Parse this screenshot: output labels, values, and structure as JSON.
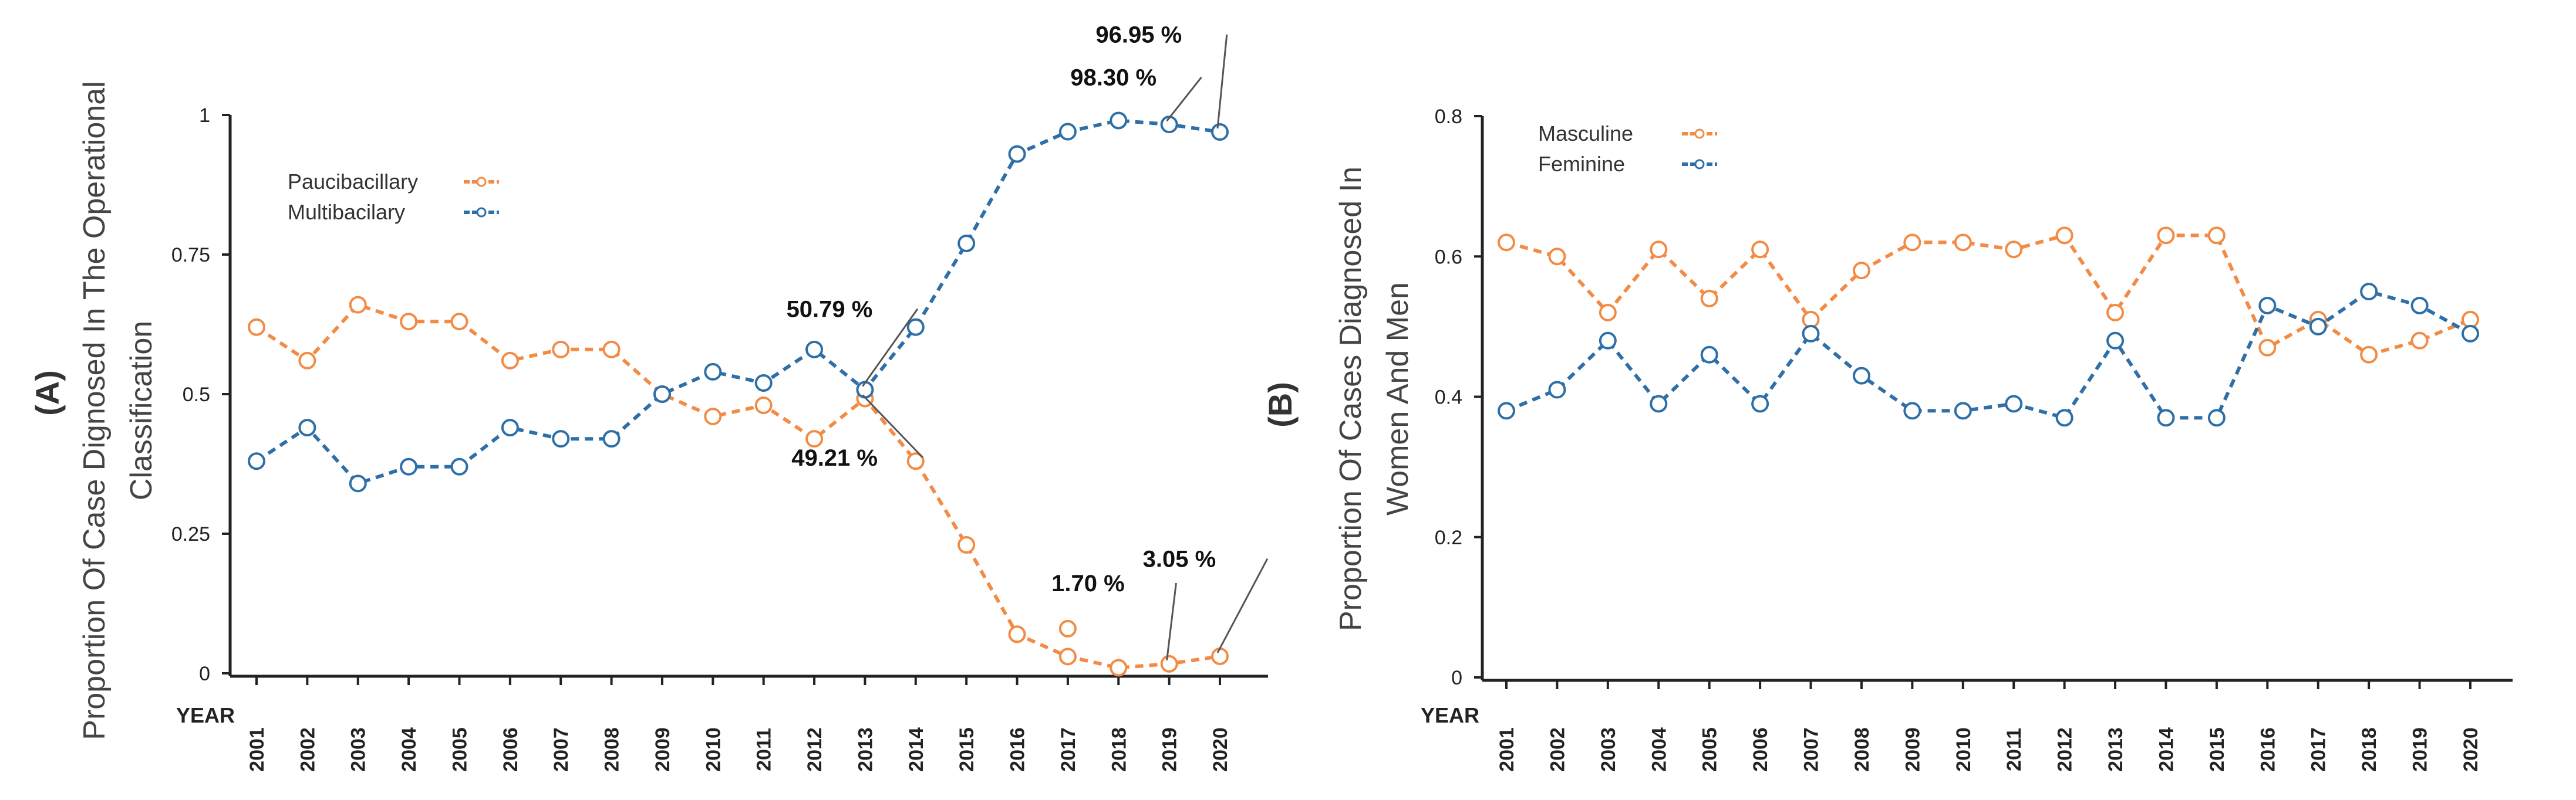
{
  "colors": {
    "orange": "#F28C45",
    "blue": "#2E6FA8",
    "axis": "#222222"
  },
  "chart_data": [
    {
      "panel": "(A)",
      "type": "line",
      "ylabel_line1": "Proportion Of Case Dignosed In The Operational",
      "ylabel_line2": "Classification",
      "xaxis_label": "YEAR",
      "ylim": [
        0,
        1
      ],
      "yticks": [
        {
          "value": 0,
          "label": "0"
        },
        {
          "value": 0.25,
          "label": "0.25"
        },
        {
          "value": 0.5,
          "label": "0.5"
        },
        {
          "value": 0.75,
          "label": "0.75"
        },
        {
          "value": 1,
          "label": "1"
        }
      ],
      "categories": [
        "2001",
        "2002",
        "2003",
        "2004",
        "2005",
        "2006",
        "2007",
        "2008",
        "2009",
        "2010",
        "2011",
        "2012",
        "2013",
        "2014",
        "2015",
        "2016",
        "2017",
        "2018",
        "2019",
        "2020"
      ],
      "legend_position": "top-left",
      "series": [
        {
          "name": "Paucibacillary",
          "color": "#F28C45",
          "values": [
            0.62,
            0.56,
            0.66,
            0.63,
            0.63,
            0.56,
            0.58,
            0.58,
            0.5,
            0.46,
            0.48,
            0.42,
            0.4921,
            0.38,
            0.23,
            0.07,
            0.03,
            0.01,
            0.017,
            0.0305
          ],
          "hollow_outlier": {
            "index": 16,
            "value": 0.08
          }
        },
        {
          "name": "Multibacilary",
          "color": "#2E6FA8",
          "values": [
            0.38,
            0.44,
            0.34,
            0.37,
            0.37,
            0.44,
            0.42,
            0.42,
            0.5,
            0.54,
            0.52,
            0.58,
            0.5079,
            0.62,
            0.77,
            0.93,
            0.97,
            0.99,
            0.983,
            0.9695
          ]
        }
      ],
      "annotations": [
        {
          "text": "96.95 %",
          "series": 1,
          "index": 19,
          "value": 0.9695,
          "dx": -1.6,
          "dy": 0.16
        },
        {
          "text": "98.30 %",
          "series": 1,
          "index": 18,
          "value": 0.983,
          "dx": -1.1,
          "dy": 0.07
        },
        {
          "text": "50.79 %",
          "series": 1,
          "index": 12,
          "value": 0.5079,
          "dx": -0.7,
          "dy": 0.13
        },
        {
          "text": "49.21 %",
          "series": 0,
          "index": 12,
          "value": 0.4921,
          "dx": -0.6,
          "dy": -0.12
        },
        {
          "text": "1.70 %",
          "series": 0,
          "index": 18,
          "value": 0.017,
          "dx": -1.6,
          "dy": 0.13
        },
        {
          "text": "3.05 %",
          "series": 0,
          "index": 19,
          "value": 0.0305,
          "dx": -0.8,
          "dy": 0.16
        }
      ]
    },
    {
      "panel": "(B)",
      "type": "line",
      "ylabel_line1": "Proportion Of Cases Diagnosed In",
      "ylabel_line2": "Women And Men",
      "xaxis_label": "YEAR",
      "ylim": [
        0,
        0.8
      ],
      "yticks": [
        {
          "value": 0,
          "label": "0"
        },
        {
          "value": 0.2,
          "label": "0.2"
        },
        {
          "value": 0.4,
          "label": "0.4"
        },
        {
          "value": 0.6,
          "label": "0.6"
        },
        {
          "value": 0.8,
          "label": "0.8"
        }
      ],
      "categories": [
        "2001",
        "2002",
        "2003",
        "2004",
        "2005",
        "2006",
        "2007",
        "2008",
        "2009",
        "2010",
        "2011",
        "2012",
        "2013",
        "2014",
        "2015",
        "2016",
        "2017",
        "2018",
        "2019",
        "2020"
      ],
      "legend_position": "top-left",
      "series": [
        {
          "name": "Masculine",
          "color": "#F28C45",
          "values": [
            0.62,
            0.6,
            0.52,
            0.61,
            0.54,
            0.61,
            0.51,
            0.58,
            0.62,
            0.62,
            0.61,
            0.63,
            0.52,
            0.63,
            0.63,
            0.47,
            0.51,
            0.46,
            0.48,
            0.51
          ]
        },
        {
          "name": "Feminine",
          "color": "#2E6FA8",
          "values": [
            0.38,
            0.41,
            0.48,
            0.39,
            0.46,
            0.39,
            0.49,
            0.43,
            0.38,
            0.38,
            0.39,
            0.37,
            0.48,
            0.37,
            0.37,
            0.53,
            0.5,
            0.55,
            0.53,
            0.49
          ]
        }
      ],
      "annotations": []
    }
  ]
}
